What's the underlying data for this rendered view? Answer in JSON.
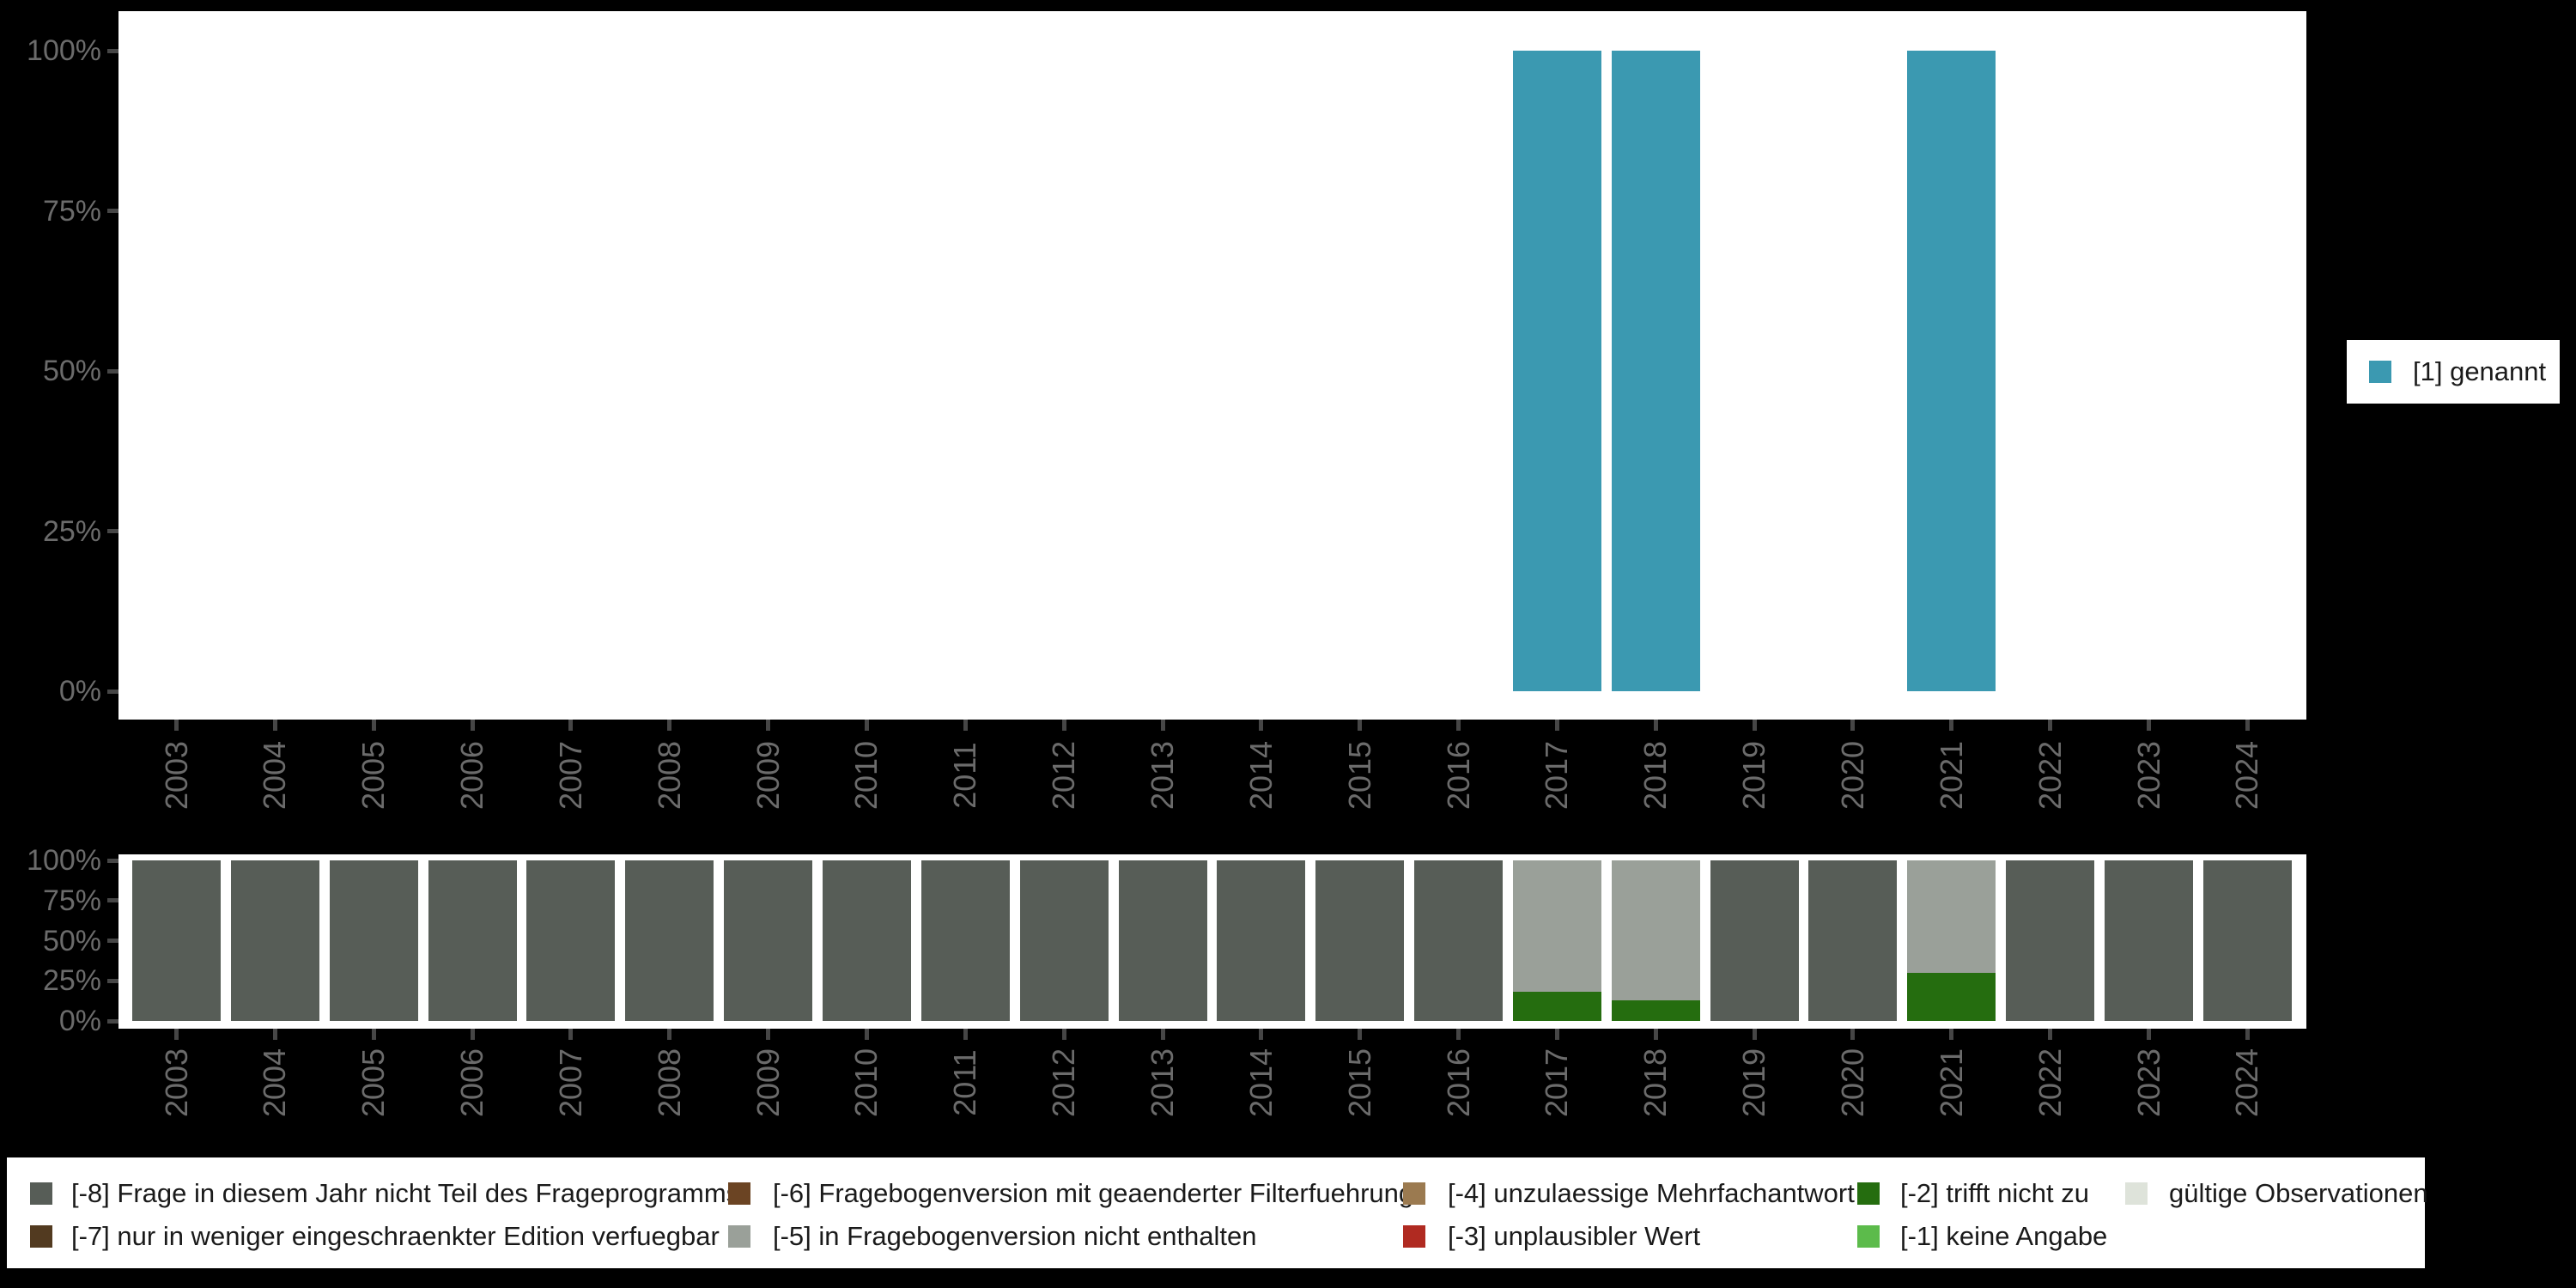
{
  "colors": {
    "background": "#000000",
    "plot_background": "#ffffff",
    "axis_label": "#6b6b6b",
    "tick": "#464646",
    "legend_text": "#1a1a1a",
    "legend_background": "#ffffff"
  },
  "years": [
    "2003",
    "2004",
    "2005",
    "2006",
    "2007",
    "2008",
    "2009",
    "2010",
    "2011",
    "2012",
    "2013",
    "2014",
    "2015",
    "2016",
    "2017",
    "2018",
    "2019",
    "2020",
    "2021",
    "2022",
    "2023",
    "2024"
  ],
  "top_chart": {
    "legend_label": "[1] genannt",
    "series_color": "#3b99b1"
  },
  "chart_data": [
    {
      "type": "bar",
      "stacking": "percent",
      "title": "",
      "xlabel": "",
      "ylabel": "",
      "categories": [
        "2003",
        "2004",
        "2005",
        "2006",
        "2007",
        "2008",
        "2009",
        "2010",
        "2011",
        "2012",
        "2013",
        "2014",
        "2015",
        "2016",
        "2017",
        "2018",
        "2019",
        "2020",
        "2021",
        "2022",
        "2023",
        "2024"
      ],
      "series": [
        {
          "name": "[1] genannt",
          "color": "#3b99b1",
          "values": [
            0,
            0,
            0,
            0,
            0,
            0,
            0,
            0,
            0,
            0,
            0,
            0,
            0,
            0,
            100,
            100,
            0,
            0,
            100,
            0,
            0,
            0
          ]
        }
      ],
      "ylim": [
        0,
        100
      ],
      "ytick_labels": [
        "100%",
        "75%",
        "50%",
        "25%",
        "0%"
      ],
      "grid": false,
      "legend_position": "right"
    },
    {
      "type": "bar",
      "stacking": "percent",
      "title": "",
      "xlabel": "",
      "ylabel": "",
      "categories": [
        "2003",
        "2004",
        "2005",
        "2006",
        "2007",
        "2008",
        "2009",
        "2010",
        "2011",
        "2012",
        "2013",
        "2014",
        "2015",
        "2016",
        "2017",
        "2018",
        "2019",
        "2020",
        "2021",
        "2022",
        "2023",
        "2024"
      ],
      "series": [
        {
          "name": "[-2] trifft nicht zu",
          "color": "#256d0f",
          "values": [
            0,
            0,
            0,
            0,
            0,
            0,
            0,
            0,
            0,
            0,
            0,
            0,
            0,
            0,
            18,
            13,
            0,
            0,
            30,
            0,
            0,
            0
          ]
        },
        {
          "name": "[-5] in Fragebogenversion nicht enthalten",
          "color": "#9aa099",
          "values": [
            0,
            0,
            0,
            0,
            0,
            0,
            0,
            0,
            0,
            0,
            0,
            0,
            0,
            0,
            82,
            87,
            0,
            0,
            70,
            0,
            0,
            0
          ]
        },
        {
          "name": "[-8] Frage in diesem Jahr nicht Teil des Frageprogramms",
          "color": "#575d57",
          "values": [
            100,
            100,
            100,
            100,
            100,
            100,
            100,
            100,
            100,
            100,
            100,
            100,
            100,
            100,
            0,
            0,
            100,
            100,
            0,
            100,
            100,
            100
          ]
        }
      ],
      "ylim": [
        0,
        100
      ],
      "ytick_labels": [
        "100%",
        "75%",
        "50%",
        "25%",
        "0%"
      ],
      "grid": false,
      "legend_position": "bottom"
    }
  ],
  "missing_legend": {
    "items": [
      {
        "label": "[-8] Frage in diesem Jahr nicht Teil des Frageprogramms",
        "color": "#575d57",
        "col": 1,
        "row": 1
      },
      {
        "label": "[-7] nur in weniger eingeschraenkter Edition verfuegbar",
        "color": "#523a20",
        "col": 1,
        "row": 2
      },
      {
        "label": "[-6] Fragebogenversion mit geaenderter Filterfuehrung",
        "color": "#6b4423",
        "col": 2,
        "row": 1
      },
      {
        "label": "[-5] in Fragebogenversion nicht enthalten",
        "color": "#9aa099",
        "col": 2,
        "row": 2
      },
      {
        "label": "[-4] unzulaessige Mehrfachantwort",
        "color": "#9b7a50",
        "col": 3,
        "row": 1
      },
      {
        "label": "[-3] unplausibler Wert",
        "color": "#b02a21",
        "col": 3,
        "row": 2
      },
      {
        "label": "[-2] trifft nicht zu",
        "color": "#256d0f",
        "col": 4,
        "row": 1
      },
      {
        "label": "[-1] keine Angabe",
        "color": "#5cbb4b",
        "col": 4,
        "row": 2
      },
      {
        "label": "gültige Observationen",
        "color": "#dee3da",
        "col": 5,
        "row": 1
      }
    ]
  }
}
